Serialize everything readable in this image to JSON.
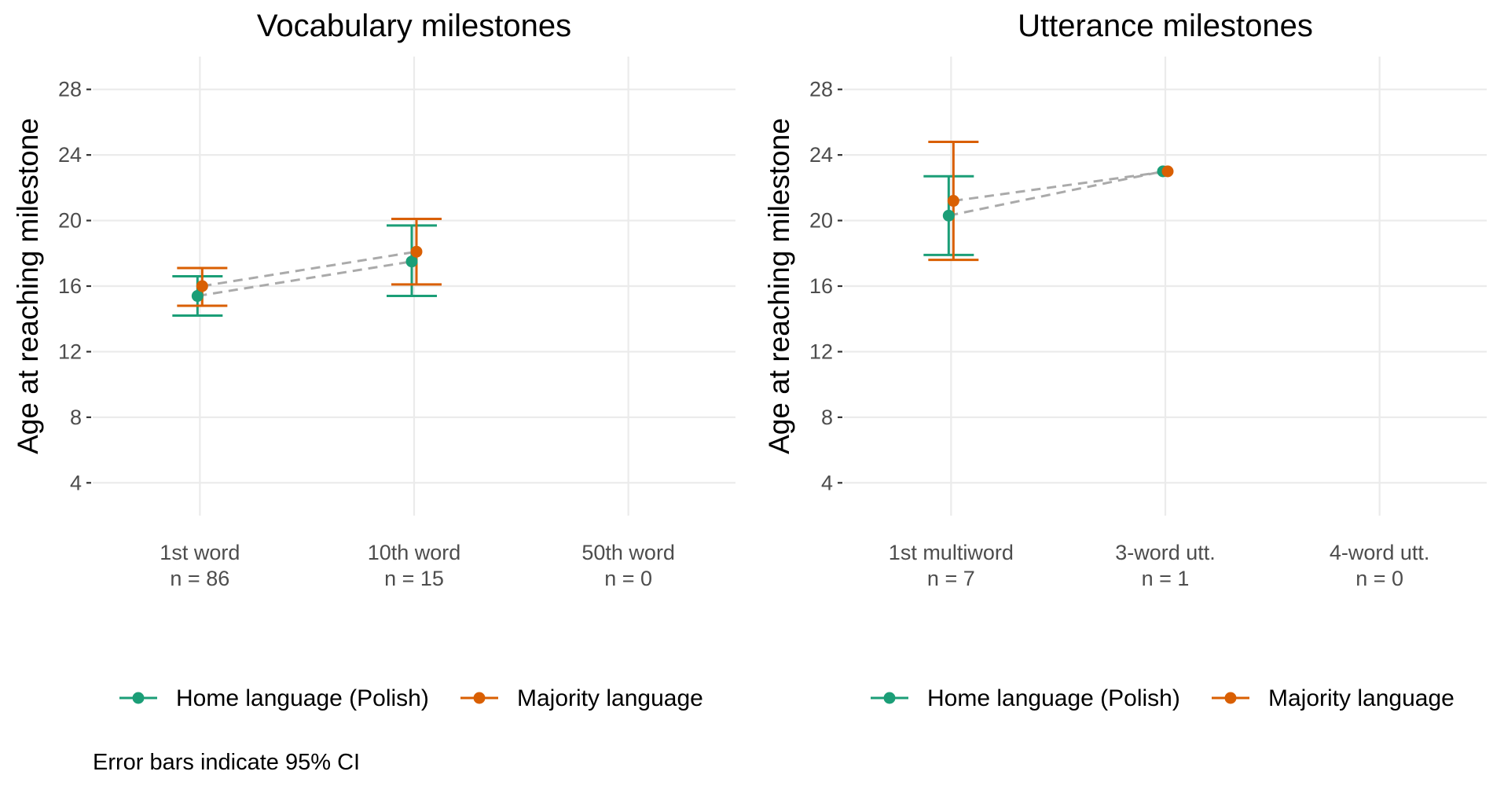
{
  "chart_data": [
    {
      "type": "scatter",
      "title": "Vocabulary milestones",
      "ylabel": "Age at reaching milestone",
      "xlabel": "",
      "ylim": [
        2,
        30
      ],
      "yticks": [
        4,
        8,
        12,
        16,
        20,
        24,
        28
      ],
      "categories": [
        "1st word",
        "10th word",
        "50th word"
      ],
      "category_counts": [
        "n = 86",
        "n = 15",
        "n = 0"
      ],
      "grid": true,
      "legend_position": "bottom",
      "series": [
        {
          "name": "Home language (Polish)",
          "color": "#1b9e77",
          "points": [
            {
              "category": "1st word",
              "y": 15.4,
              "ci": [
                14.2,
                16.6
              ]
            },
            {
              "category": "10th word",
              "y": 17.5,
              "ci": [
                15.4,
                19.7
              ]
            }
          ]
        },
        {
          "name": "Majority language",
          "color": "#d95f02",
          "points": [
            {
              "category": "1st word",
              "y": 16.0,
              "ci": [
                14.8,
                17.1
              ]
            },
            {
              "category": "10th word",
              "y": 18.1,
              "ci": [
                16.1,
                20.1
              ]
            }
          ]
        }
      ]
    },
    {
      "type": "scatter",
      "title": "Utterance milestones",
      "ylabel": "Age at reaching milestone",
      "xlabel": "",
      "ylim": [
        2,
        30
      ],
      "yticks": [
        4,
        8,
        12,
        16,
        20,
        24,
        28
      ],
      "categories": [
        "1st multiword",
        "3-word utt.",
        "4-word utt."
      ],
      "category_counts": [
        "n = 7",
        "n = 1",
        "n = 0"
      ],
      "grid": true,
      "legend_position": "bottom",
      "series": [
        {
          "name": "Home language (Polish)",
          "color": "#1b9e77",
          "points": [
            {
              "category": "1st multiword",
              "y": 20.3,
              "ci": [
                17.9,
                22.7
              ]
            },
            {
              "category": "3-word utt.",
              "y": 23.0,
              "ci": null
            }
          ]
        },
        {
          "name": "Majority language",
          "color": "#d95f02",
          "points": [
            {
              "category": "1st multiword",
              "y": 21.2,
              "ci": [
                17.6,
                24.8
              ]
            },
            {
              "category": "3-word utt.",
              "y": 23.0,
              "ci": null
            }
          ]
        }
      ]
    }
  ],
  "legend": {
    "items": [
      {
        "label": "Home language (Polish)",
        "color": "#1b9e77"
      },
      {
        "label": "Majority language",
        "color": "#d95f02"
      }
    ]
  },
  "caption": "Error bars indicate 95% CI",
  "colors": {
    "home": "#1b9e77",
    "majority": "#d95f02",
    "connector": "#aaaaaa",
    "grid": "#ebebeb",
    "tick_text": "#4d4d4d"
  }
}
